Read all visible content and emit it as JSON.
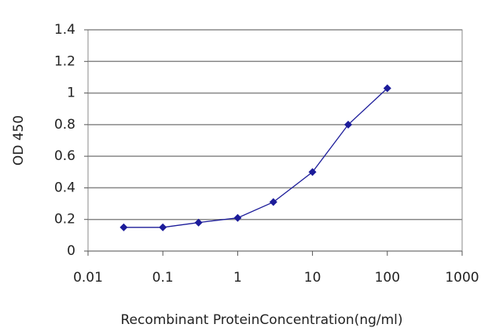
{
  "chart_data": {
    "type": "line",
    "x_label": "Recombinant ProteinConcentration(ng/ml)",
    "y_label": "OD 450",
    "xscale": "log",
    "x": [
      0.03,
      0.1,
      0.3,
      1,
      3,
      10,
      30,
      100
    ],
    "series": [
      {
        "name": "OD 450",
        "color": "#1c1c9a",
        "values": [
          0.15,
          0.15,
          0.18,
          0.21,
          0.31,
          0.5,
          0.8,
          1.03
        ]
      }
    ],
    "xlim": [
      0.01,
      1000
    ],
    "xticks": [
      0.01,
      0.1,
      1,
      10,
      100,
      1000
    ],
    "ylim": [
      0,
      1.4
    ],
    "yticks": [
      0,
      0.2,
      0.4,
      0.6,
      0.8,
      1,
      1.2,
      1.4
    ],
    "grid": true
  }
}
